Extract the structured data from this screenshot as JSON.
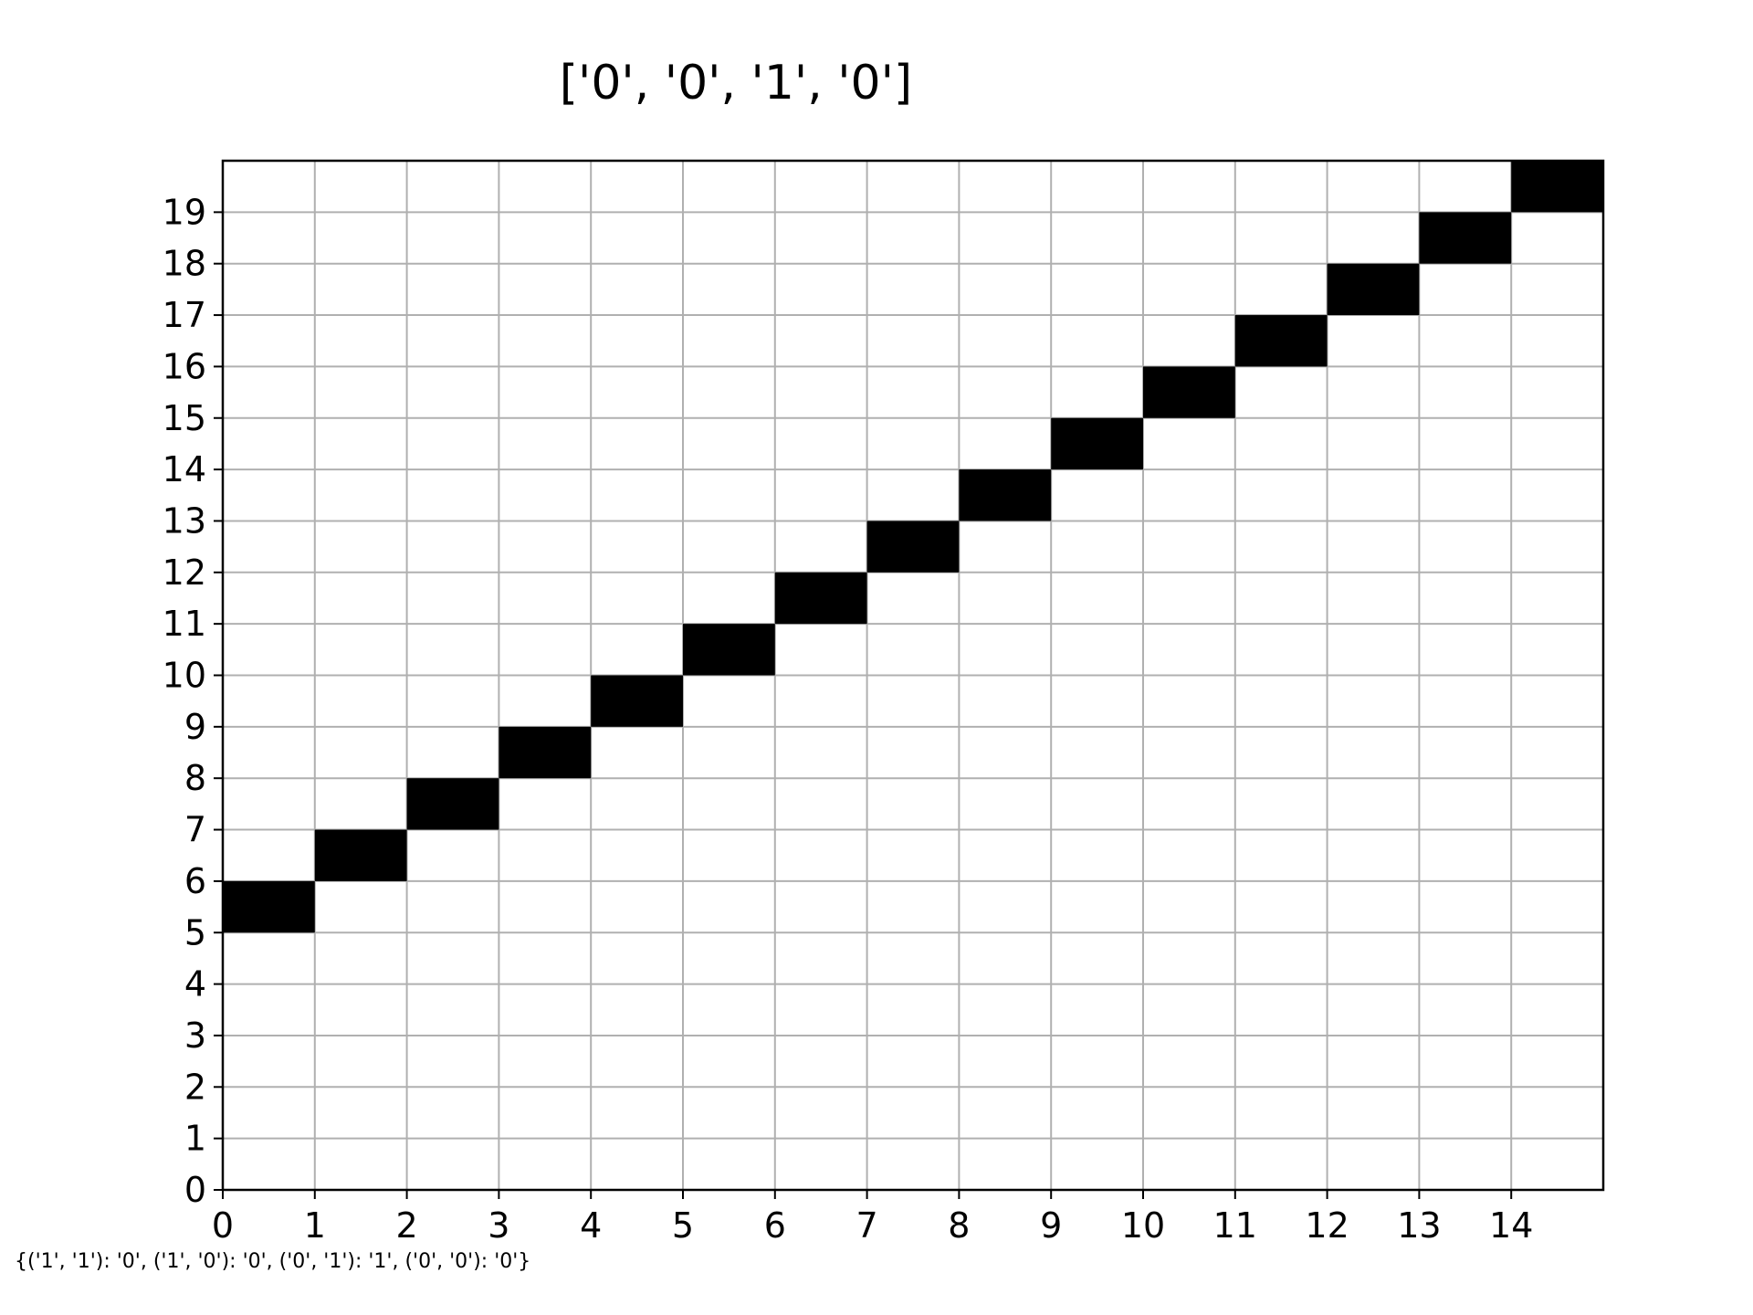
{
  "chart_data": {
    "type": "heatmap",
    "title": "['0', '0', '1', '0']",
    "footnote": "{('1', '1'): '0', ('1', '0'): '0', ('0', '1'): '1', ('0', '0'): '0'}",
    "xlabel": "",
    "ylabel": "",
    "xlim": [
      0,
      15
    ],
    "ylim": [
      0,
      20
    ],
    "x_ticks": [
      "0",
      "1",
      "2",
      "3",
      "4",
      "5",
      "6",
      "7",
      "8",
      "9",
      "10",
      "11",
      "12",
      "13",
      "14"
    ],
    "y_ticks": [
      "0",
      "1",
      "2",
      "3",
      "4",
      "5",
      "6",
      "7",
      "8",
      "9",
      "10",
      "11",
      "12",
      "13",
      "14",
      "15",
      "16",
      "17",
      "18",
      "19"
    ],
    "grid": true,
    "cell_color": "#000000",
    "grid_color": "#b0b0b0",
    "filled_cells": [
      {
        "x": 0,
        "y": 5
      },
      {
        "x": 1,
        "y": 6
      },
      {
        "x": 2,
        "y": 7
      },
      {
        "x": 3,
        "y": 8
      },
      {
        "x": 4,
        "y": 9
      },
      {
        "x": 5,
        "y": 10
      },
      {
        "x": 6,
        "y": 11
      },
      {
        "x": 7,
        "y": 12
      },
      {
        "x": 8,
        "y": 13
      },
      {
        "x": 9,
        "y": 14
      },
      {
        "x": 10,
        "y": 15
      },
      {
        "x": 11,
        "y": 16
      },
      {
        "x": 12,
        "y": 17
      },
      {
        "x": 13,
        "y": 18
      },
      {
        "x": 14,
        "y": 19
      }
    ]
  }
}
